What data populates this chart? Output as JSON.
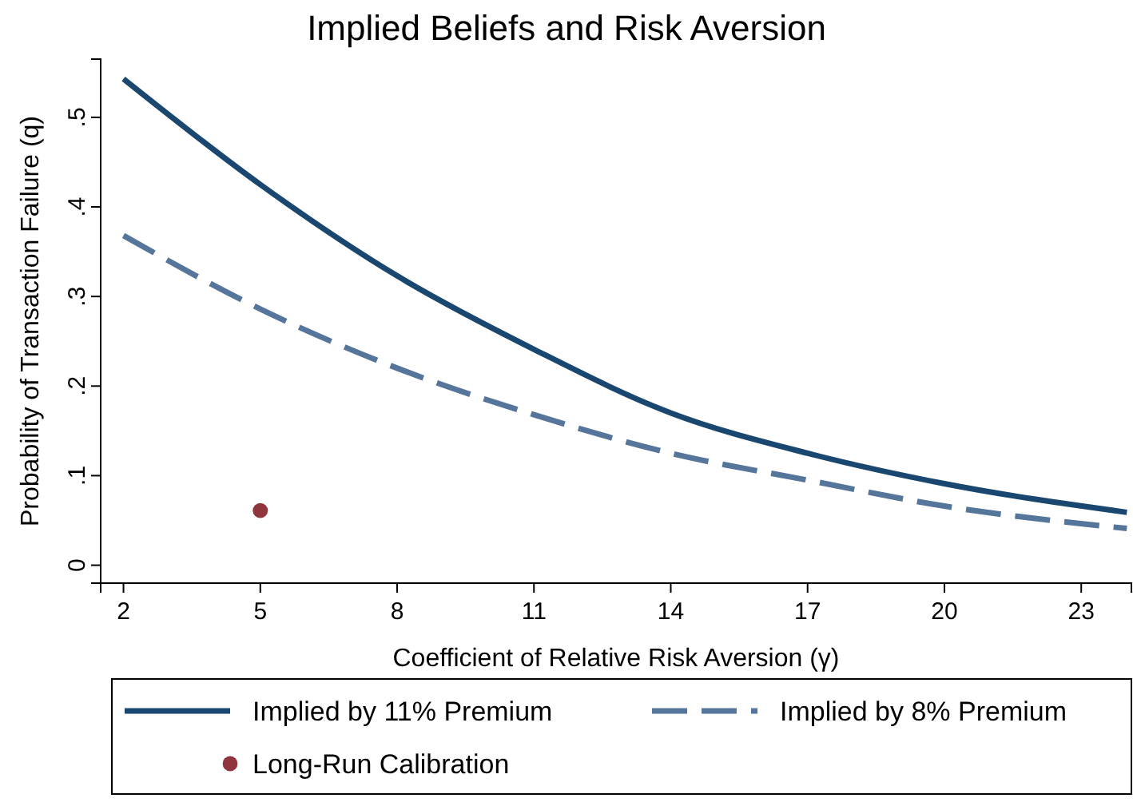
{
  "chart_data": {
    "type": "line",
    "title": "Implied Beliefs and Risk Aversion",
    "xlabel": "Coefficient of Relative Risk Aversion (γ)",
    "ylabel": "Probability of Transaction Failure (q)",
    "xlim": [
      1.5,
      24.1
    ],
    "xticks": [
      2,
      5,
      8,
      11,
      14,
      17,
      20,
      23
    ],
    "ylim": [
      -0.02,
      0.565
    ],
    "yticks": [
      {
        "value": 0,
        "label": "0"
      },
      {
        "value": 0.1,
        "label": ".1"
      },
      {
        "value": 0.2,
        "label": ".2"
      },
      {
        "value": 0.3,
        "label": ".3"
      },
      {
        "value": 0.4,
        "label": ".4"
      },
      {
        "value": 0.5,
        "label": ".5"
      }
    ],
    "grid": false,
    "legend": "bottom",
    "series": [
      {
        "name": "Implied by 11% Premium",
        "line_style": "solid",
        "color": "#1a476f",
        "x": [
          2,
          5,
          8,
          11,
          14,
          17,
          20,
          24
        ],
        "values": [
          0.543,
          0.425,
          0.323,
          0.241,
          0.17,
          0.125,
          0.091,
          0.059
        ]
      },
      {
        "name": "Implied by 8% Premium",
        "line_style": "dashed",
        "color": "#55759b",
        "x": [
          2,
          5,
          8,
          11,
          14,
          17,
          20,
          24
        ],
        "values": [
          0.368,
          0.286,
          0.22,
          0.168,
          0.125,
          0.095,
          0.066,
          0.041
        ]
      },
      {
        "name": "Long-Run Calibration",
        "type": "scatter",
        "marker": "circle",
        "color": "#90353b",
        "x": [
          5
        ],
        "values": [
          0.061
        ]
      }
    ]
  }
}
